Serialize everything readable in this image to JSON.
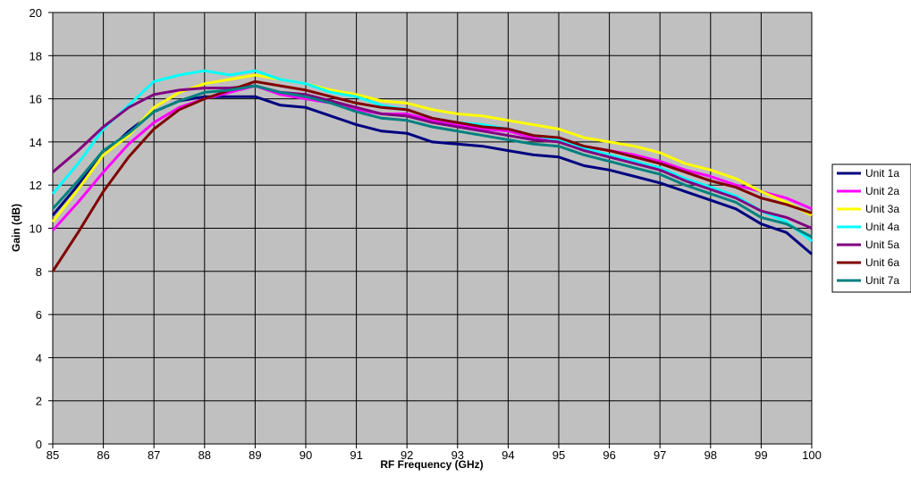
{
  "chart_data": {
    "type": "line",
    "title": "",
    "xlabel": "RF Frequency (GHz)",
    "ylabel": "Gain (dB)",
    "xlim": [
      85,
      100
    ],
    "ylim": [
      0,
      20
    ],
    "x_ticks": [
      "85",
      "86",
      "87",
      "88",
      "89",
      "90",
      "91",
      "92",
      "93",
      "94",
      "95",
      "96",
      "97",
      "98",
      "99",
      "100"
    ],
    "y_ticks": [
      "0",
      "2",
      "4",
      "6",
      "8",
      "10",
      "12",
      "14",
      "16",
      "18",
      "20"
    ],
    "grid": true,
    "legend_position": "right",
    "plot_background": "#c0c0c0",
    "x": [
      85,
      85.5,
      86,
      86.5,
      87,
      87.5,
      88,
      88.5,
      89,
      89.5,
      90,
      90.5,
      91,
      91.5,
      92,
      92.5,
      93,
      93.5,
      94,
      94.5,
      95,
      95.5,
      96,
      96.5,
      97,
      97.5,
      98,
      98.5,
      99,
      99.5,
      100
    ],
    "series": [
      {
        "name": "Unit 1a",
        "color": "#000080",
        "values": [
          10.6,
          12.0,
          13.4,
          14.5,
          15.4,
          15.9,
          16.1,
          16.1,
          16.1,
          15.7,
          15.6,
          15.2,
          14.8,
          14.5,
          14.4,
          14.0,
          13.9,
          13.8,
          13.6,
          13.4,
          13.3,
          12.9,
          12.7,
          12.4,
          12.1,
          11.7,
          11.3,
          10.9,
          10.2,
          9.8,
          8.8
        ]
      },
      {
        "name": "Unit 2a",
        "color": "#ff00ff",
        "values": [
          9.9,
          11.2,
          12.6,
          13.9,
          14.9,
          15.6,
          16.0,
          16.3,
          16.6,
          16.2,
          16.0,
          15.8,
          15.5,
          15.3,
          15.3,
          15.0,
          14.8,
          14.6,
          14.5,
          14.2,
          14.1,
          13.8,
          13.6,
          13.4,
          13.1,
          12.7,
          12.4,
          12.0,
          11.7,
          11.4,
          10.9
        ]
      },
      {
        "name": "Unit 3a",
        "color": "#ffff00",
        "values": [
          10.3,
          11.8,
          13.4,
          14.3,
          15.6,
          16.3,
          16.7,
          16.9,
          17.1,
          16.9,
          16.7,
          16.4,
          16.2,
          15.9,
          15.8,
          15.5,
          15.3,
          15.2,
          15.0,
          14.8,
          14.6,
          14.2,
          14.0,
          13.8,
          13.5,
          13.0,
          12.7,
          12.3,
          11.7,
          11.2,
          10.6
        ]
      },
      {
        "name": "Unit 4a",
        "color": "#00ffff",
        "values": [
          11.6,
          13.0,
          14.6,
          15.7,
          16.8,
          17.1,
          17.3,
          17.1,
          17.3,
          16.9,
          16.7,
          16.3,
          16.1,
          15.7,
          15.5,
          15.1,
          14.9,
          14.8,
          14.6,
          14.3,
          14.1,
          13.7,
          13.4,
          13.1,
          12.8,
          12.3,
          11.9,
          11.5,
          10.8,
          10.3,
          9.4
        ]
      },
      {
        "name": "Unit 5a",
        "color": "#800080",
        "values": [
          12.6,
          13.6,
          14.7,
          15.6,
          16.2,
          16.4,
          16.5,
          16.5,
          16.6,
          16.3,
          16.2,
          15.9,
          15.6,
          15.3,
          15.2,
          14.9,
          14.7,
          14.5,
          14.3,
          14.1,
          14.0,
          13.6,
          13.3,
          13.0,
          12.7,
          12.2,
          11.8,
          11.4,
          10.8,
          10.5,
          10.0
        ]
      },
      {
        "name": "Unit 6a",
        "color": "#800000",
        "values": [
          8.0,
          9.8,
          11.7,
          13.3,
          14.6,
          15.5,
          16.0,
          16.4,
          16.8,
          16.6,
          16.4,
          16.1,
          15.8,
          15.6,
          15.5,
          15.1,
          14.9,
          14.7,
          14.6,
          14.3,
          14.2,
          13.8,
          13.6,
          13.3,
          13.0,
          12.6,
          12.2,
          11.9,
          11.4,
          11.1,
          10.7
        ]
      },
      {
        "name": "Unit 7a",
        "color": "#008080",
        "values": [
          10.9,
          12.2,
          13.6,
          14.4,
          15.4,
          15.9,
          16.3,
          16.4,
          16.6,
          16.3,
          16.1,
          15.8,
          15.4,
          15.1,
          15.0,
          14.7,
          14.5,
          14.3,
          14.1,
          13.9,
          13.8,
          13.4,
          13.1,
          12.8,
          12.5,
          12.0,
          11.6,
          11.2,
          10.5,
          10.2,
          9.6
        ]
      }
    ]
  }
}
